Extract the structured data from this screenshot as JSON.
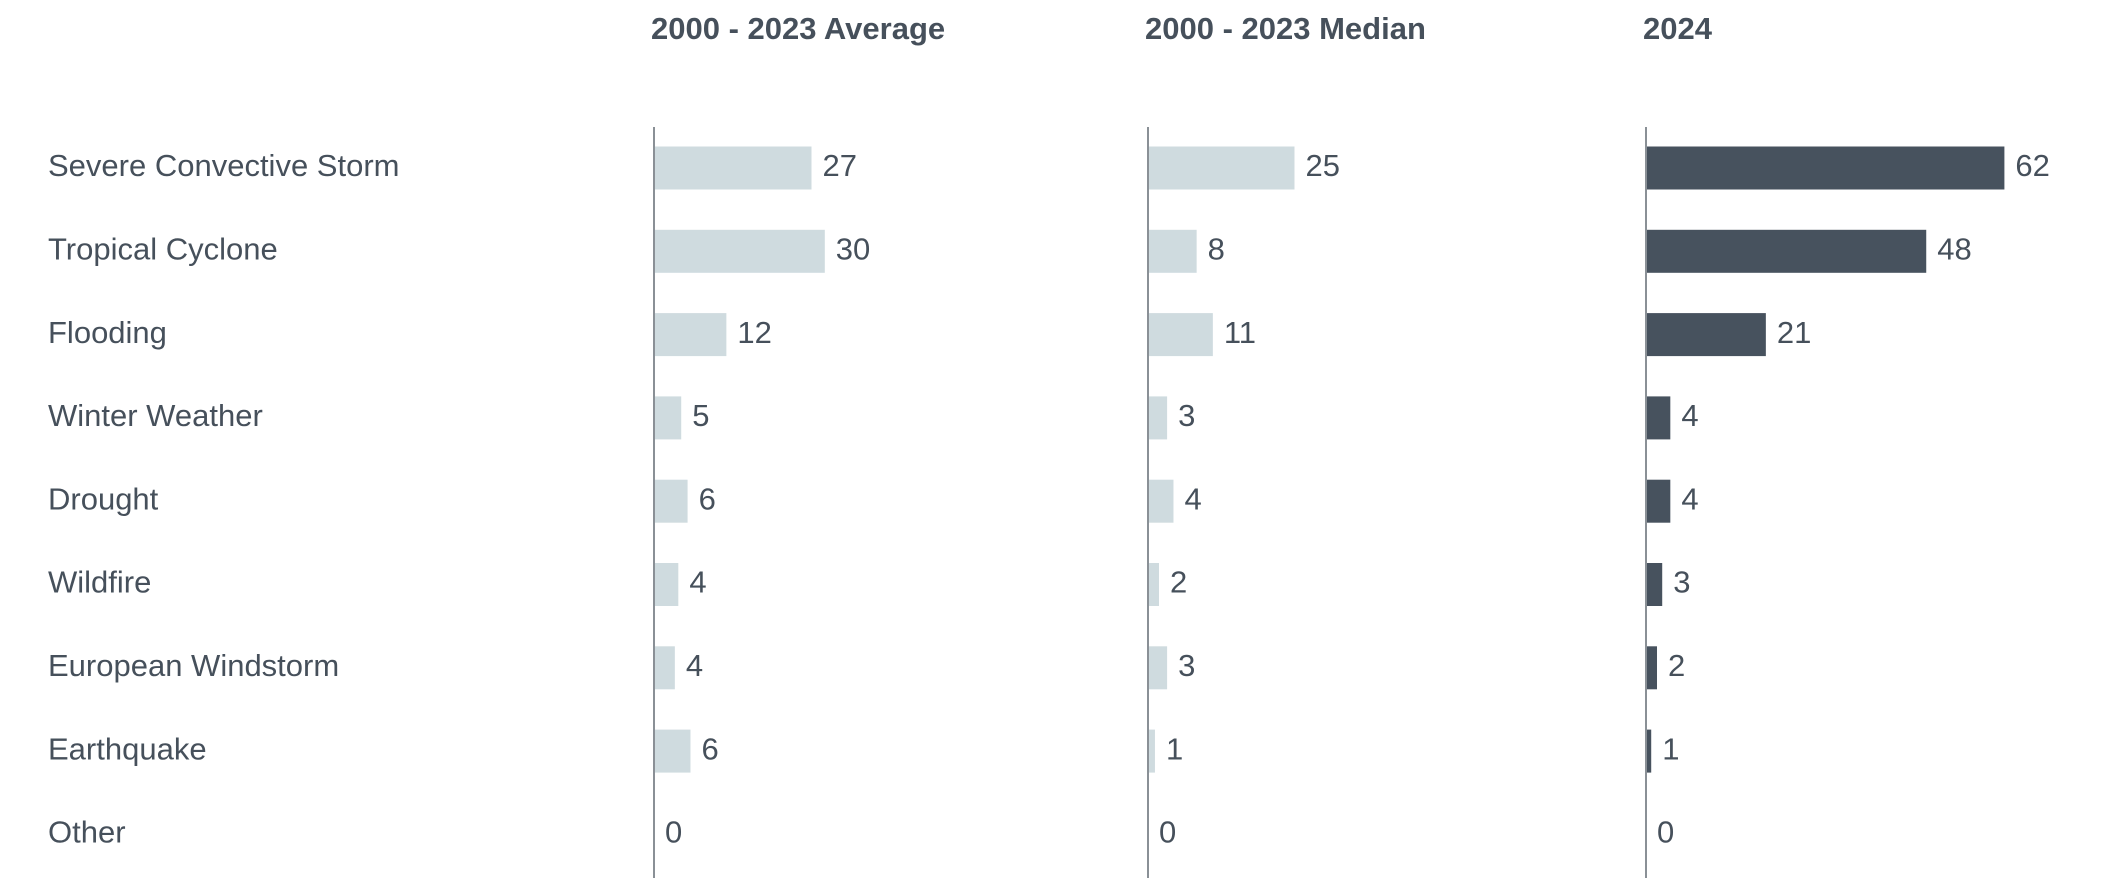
{
  "chart_data": {
    "type": "bar",
    "orientation": "horizontal",
    "categories": [
      "Severe Convective Storm",
      "Tropical Cyclone",
      "Flooding",
      "Winter Weather",
      "Drought",
      "Wildfire",
      "European Windstorm",
      "Earthquake",
      "Other"
    ],
    "series": [
      {
        "name": "2000 - 2023 Average",
        "color": "#cfdbdf",
        "values": [
          27.2,
          29.5,
          12.5,
          4.7,
          5.8,
          4.2,
          3.6,
          6.3,
          0
        ],
        "value_labels": [
          "27",
          "30",
          "12",
          "5",
          "6",
          "4",
          "4",
          "6",
          "0"
        ]
      },
      {
        "name": "2000 - 2023 Median",
        "color": "#cfdbdf",
        "values": [
          25.3,
          8.4,
          11.2,
          3.3,
          4.4,
          1.9,
          3.3,
          1.2,
          0
        ],
        "value_labels": [
          "25",
          "8",
          "11",
          "3",
          "4",
          "2",
          "3",
          "1",
          "0"
        ]
      },
      {
        "name": "2024",
        "color": "#47525e",
        "values": [
          61.9,
          48.4,
          20.7,
          4.2,
          4.2,
          2.8,
          1.9,
          0.9,
          0
        ],
        "value_labels": [
          "62",
          "48",
          "21",
          "4",
          "4",
          "3",
          "2",
          "1",
          "0"
        ]
      }
    ]
  }
}
